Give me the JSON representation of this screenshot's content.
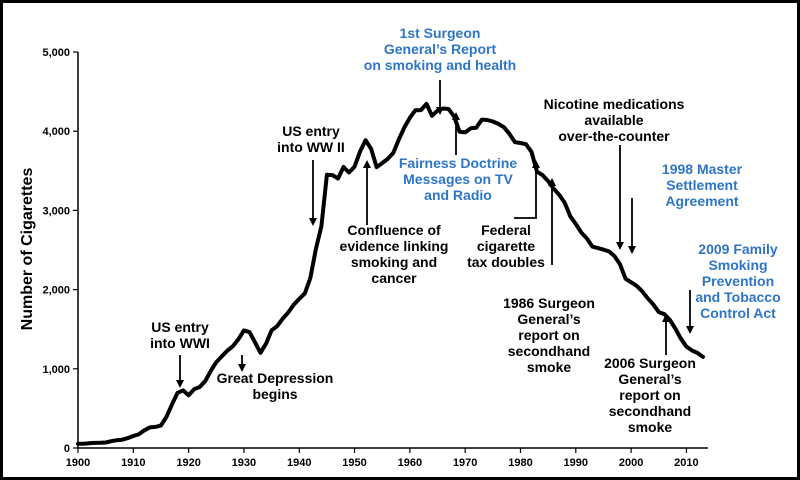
{
  "chart_data": {
    "type": "line",
    "title": "",
    "xlabel": "",
    "ylabel": "Number of Cigarettes",
    "xlim": [
      1900,
      2013
    ],
    "ylim": [
      0,
      5000
    ],
    "x_ticks": [
      1900,
      1910,
      1920,
      1930,
      1940,
      1950,
      1960,
      1970,
      1980,
      1990,
      2000,
      2010
    ],
    "y_ticks": [
      0,
      1000,
      2000,
      3000,
      4000,
      5000
    ],
    "y_tick_labels": [
      "0",
      "1,000",
      "2,000",
      "3,000",
      "4,000",
      "5,000"
    ],
    "grid": false,
    "series": [
      {
        "color": "#000000",
        "x": [
          1900,
          1901,
          1902,
          1903,
          1904,
          1905,
          1906,
          1907,
          1908,
          1909,
          1910,
          1911,
          1912,
          1913,
          1914,
          1915,
          1916,
          1917,
          1918,
          1919,
          1920,
          1921,
          1922,
          1923,
          1924,
          1925,
          1926,
          1927,
          1928,
          1929,
          1930,
          1931,
          1932,
          1933,
          1934,
          1935,
          1936,
          1937,
          1938,
          1939,
          1940,
          1941,
          1942,
          1943,
          1944,
          1945,
          1946,
          1947,
          1948,
          1949,
          1950,
          1951,
          1952,
          1953,
          1954,
          1955,
          1956,
          1957,
          1958,
          1959,
          1960,
          1961,
          1962,
          1963,
          1964,
          1965,
          1966,
          1967,
          1968,
          1969,
          1970,
          1971,
          1972,
          1973,
          1974,
          1975,
          1976,
          1977,
          1978,
          1979,
          1980,
          1981,
          1982,
          1983,
          1984,
          1985,
          1986,
          1987,
          1988,
          1989,
          1990,
          1991,
          1992,
          1993,
          1994,
          1995,
          1996,
          1997,
          1998,
          1999,
          2000,
          2001,
          2002,
          2003,
          2004,
          2005,
          2006,
          2007,
          2008,
          2009,
          2010,
          2011,
          2012,
          2013
        ],
        "y": [
          54,
          53,
          60,
          64,
          66,
          70,
          86,
          99,
          105,
          125,
          151,
          173,
          223,
          260,
          267,
          285,
          395,
          551,
          697,
          727,
          665,
          742,
          770,
          845,
          971,
          1085,
          1157,
          1228,
          1285,
          1372,
          1485,
          1464,
          1334,
          1202,
          1319,
          1485,
          1538,
          1631,
          1711,
          1809,
          1883,
          1952,
          2144,
          2508,
          2800,
          3449,
          3446,
          3403,
          3548,
          3478,
          3552,
          3745,
          3886,
          3778,
          3546,
          3597,
          3650,
          3726,
          3895,
          4047,
          4171,
          4265,
          4266,
          4345,
          4195,
          4259,
          4287,
          4280,
          4186,
          3993,
          3985,
          4037,
          4043,
          4147,
          4141,
          4123,
          4092,
          4051,
          3967,
          3861,
          3851,
          3836,
          3739,
          3488,
          3446,
          3370,
          3274,
          3197,
          3096,
          2926,
          2828,
          2720,
          2647,
          2543,
          2524,
          2505,
          2482,
          2423,
          2320,
          2136,
          2092,
          2048,
          1979,
          1890,
          1814,
          1716,
          1691,
          1619,
          1509,
          1380,
          1280,
          1232,
          1200,
          1150
        ]
      }
    ],
    "annotations": {
      "us_entry_wwi": "US entry\ninto WWI",
      "great_depression": "Great Depression\nbegins",
      "us_entry_wwii": "US entry\ninto WW II",
      "confluence": "Confluence of\nevidence linking\nsmoking and\ncancer",
      "first_sg_report": "1st Surgeon\nGeneral’s Report\non smoking and health",
      "fairness_doctrine": "Fairness Doctrine\nMessages on TV\nand Radio",
      "federal_tax": "Federal\ncigarette\ntax doubles",
      "sg_1986": "1986 Surgeon\nGeneral’s\nreport on\nsecondhand\nsmoke",
      "nicotine_otc": "Nicotine medications\navailable\nover-the-counter",
      "master_settlement": "1998 Master\nSettlement\nAgreement",
      "family_smoking_act": "2009 Family\nSmoking\nPrevention\nand Tobacco\nControl Act",
      "sg_2006": "2006 Surgeon\nGeneral’s\nreport on\nsecondhand\nsmoke"
    },
    "colors": {
      "line": "#000000",
      "black_text": "#000000",
      "blue_text": "#2e75c6"
    }
  }
}
